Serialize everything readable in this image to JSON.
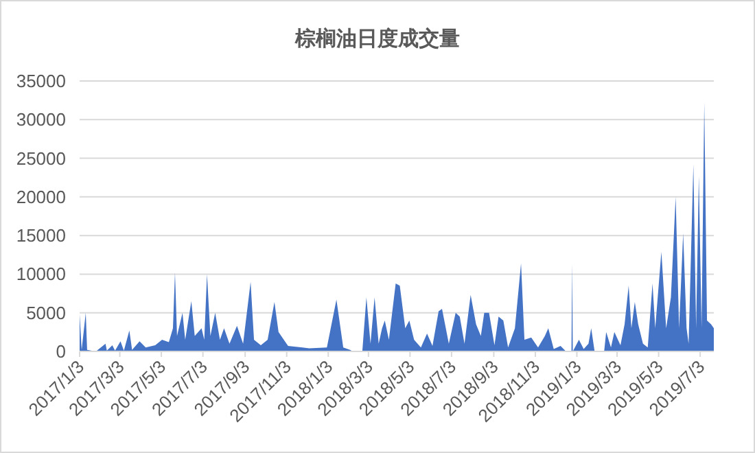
{
  "chart_data": {
    "type": "area",
    "title": "棕榈油日度成交量",
    "color": "#4472c4",
    "grid": "y",
    "xlim": [
      "2017-01-03",
      "2019-07-23"
    ],
    "ylim": [
      0,
      35000
    ],
    "yticks": [
      0,
      5000,
      10000,
      15000,
      20000,
      25000,
      30000,
      35000
    ],
    "xticks": [
      {
        "value": "2017-01-03",
        "label": "2017/1/3"
      },
      {
        "value": "2017-03-03",
        "label": "2017/3/3"
      },
      {
        "value": "2017-05-03",
        "label": "2017/5/3"
      },
      {
        "value": "2017-07-03",
        "label": "2017/7/3"
      },
      {
        "value": "2017-09-03",
        "label": "2017/9/3"
      },
      {
        "value": "2017-11-03",
        "label": "2017/11/3"
      },
      {
        "value": "2018-01-03",
        "label": "2018/1/3"
      },
      {
        "value": "2018-03-03",
        "label": "2018/3/3"
      },
      {
        "value": "2018-05-03",
        "label": "2018/5/3"
      },
      {
        "value": "2018-07-03",
        "label": "2018/7/3"
      },
      {
        "value": "2018-09-03",
        "label": "2018/9/3"
      },
      {
        "value": "2018-11-03",
        "label": "2018/11/3"
      },
      {
        "value": "2019-01-03",
        "label": "2019/1/3"
      },
      {
        "value": "2019-03-03",
        "label": "2019/3/3"
      },
      {
        "value": "2019-05-03",
        "label": "2019/5/3"
      },
      {
        "value": "2019-07-03",
        "label": "2019/7/3"
      }
    ],
    "x": [
      "2017-01-03",
      "2017-01-06",
      "2017-01-12",
      "2017-01-14",
      "2017-01-27",
      "2017-02-10",
      "2017-02-12",
      "2017-02-20",
      "2017-02-24",
      "2017-03-04",
      "2017-03-09",
      "2017-03-17",
      "2017-03-21",
      "2017-04-01",
      "2017-04-10",
      "2017-04-24",
      "2017-05-04",
      "2017-05-14",
      "2017-05-20",
      "2017-05-23",
      "2017-05-26",
      "2017-06-03",
      "2017-06-07",
      "2017-06-16",
      "2017-06-21",
      "2017-07-01",
      "2017-07-05",
      "2017-07-09",
      "2017-07-14",
      "2017-07-21",
      "2017-07-28",
      "2017-08-03",
      "2017-08-11",
      "2017-08-22",
      "2017-08-31",
      "2017-09-11",
      "2017-09-16",
      "2017-09-26",
      "2017-10-06",
      "2017-10-16",
      "2017-10-22",
      "2017-11-05",
      "2017-11-26",
      "2017-12-06",
      "2018-01-01",
      "2018-01-15",
      "2018-01-25",
      "2018-02-04",
      "2018-02-08",
      "2018-02-22",
      "2018-02-28",
      "2018-03-06",
      "2018-03-12",
      "2018-03-18",
      "2018-03-23",
      "2018-03-27",
      "2018-04-02",
      "2018-04-12",
      "2018-04-18",
      "2018-04-26",
      "2018-05-02",
      "2018-05-09",
      "2018-05-19",
      "2018-05-28",
      "2018-06-05",
      "2018-06-14",
      "2018-06-19",
      "2018-06-29",
      "2018-07-09",
      "2018-07-15",
      "2018-07-22",
      "2018-07-31",
      "2018-08-08",
      "2018-08-15",
      "2018-08-20",
      "2018-08-27",
      "2018-09-04",
      "2018-09-10",
      "2018-09-17",
      "2018-09-24",
      "2018-10-04",
      "2018-10-13",
      "2018-10-18",
      "2018-10-28",
      "2018-11-07",
      "2018-11-17",
      "2018-11-22",
      "2018-11-30",
      "2018-12-10",
      "2018-12-18",
      "2018-12-26",
      "2018-12-27",
      "2018-12-28",
      "2019-01-06",
      "2019-01-13",
      "2019-01-20",
      "2019-01-24",
      "2019-01-29",
      "2019-02-12",
      "2019-02-15",
      "2019-02-22",
      "2019-02-27",
      "2019-03-08",
      "2019-03-14",
      "2019-03-20",
      "2019-03-24",
      "2019-03-29",
      "2019-04-03",
      "2019-04-10",
      "2019-04-17",
      "2019-04-24",
      "2019-04-28",
      "2019-05-07",
      "2019-05-14",
      "2019-05-21",
      "2019-05-28",
      "2019-06-02",
      "2019-06-08",
      "2019-06-13",
      "2019-06-16",
      "2019-06-23",
      "2019-06-27",
      "2019-07-01",
      "2019-07-05",
      "2019-07-09",
      "2019-07-13",
      "2019-07-19",
      "2019-07-23"
    ],
    "values": [
      4800,
      200,
      5000,
      200,
      0,
      1000,
      100,
      800,
      100,
      1300,
      100,
      2700,
      200,
      1300,
      500,
      800,
      1500,
      1200,
      3000,
      10200,
      2000,
      5000,
      1500,
      6500,
      2000,
      3000,
      1500,
      10000,
      2000,
      5000,
      1500,
      3000,
      1000,
      3300,
      1000,
      9000,
      1500,
      800,
      1500,
      6400,
      2500,
      700,
      500,
      400,
      500,
      6700,
      500,
      200,
      0,
      0,
      7000,
      1000,
      7000,
      1000,
      3000,
      4000,
      1500,
      8800,
      8500,
      3000,
      4000,
      1500,
      500,
      2300,
      700,
      5200,
      5500,
      1000,
      5000,
      4500,
      1000,
      7300,
      3500,
      2000,
      5000,
      5000,
      800,
      4500,
      4000,
      500,
      3000,
      11400,
      1500,
      1800,
      500,
      2000,
      3000,
      300,
      700,
      0,
      0,
      11400,
      0,
      1500,
      300,
      1000,
      3000,
      0,
      0,
      2500,
      500,
      2500,
      800,
      3500,
      8500,
      3000,
      6400,
      3500,
      1000,
      500,
      8800,
      3000,
      12900,
      3000,
      7000,
      20000,
      3000,
      15300,
      3000,
      1000,
      24200,
      3000,
      22700,
      3000,
      32200,
      4000,
      3500,
      3000
    ]
  }
}
